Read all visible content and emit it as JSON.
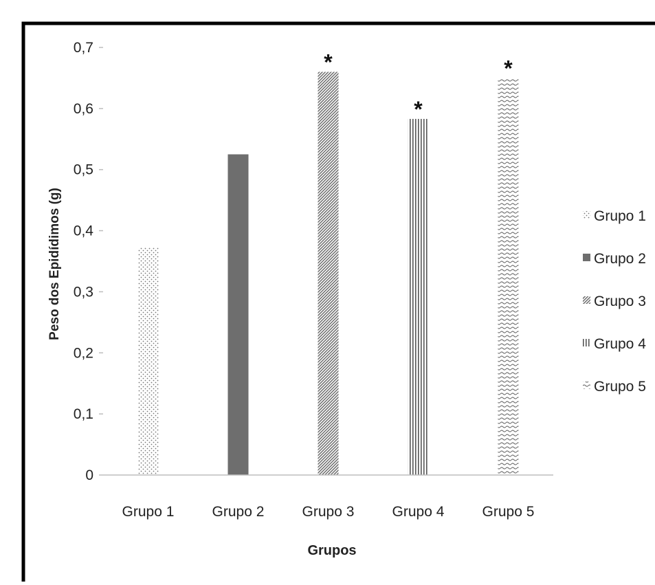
{
  "chart_data": {
    "type": "bar",
    "title": "",
    "xlabel": "Grupos",
    "ylabel": "Peso dos Epidídimos (g)",
    "ylim": [
      0,
      0.7
    ],
    "yticks": [
      "0",
      "0,1",
      "0,2",
      "0,3",
      "0,4",
      "0,5",
      "0,6",
      "0,7"
    ],
    "categories": [
      "Grupo 1",
      "Grupo 2",
      "Grupo 3",
      "Grupo 4",
      "Grupo 5"
    ],
    "values": [
      0.372,
      0.525,
      0.66,
      0.583,
      0.65
    ],
    "annotations": [
      "",
      "",
      "*",
      "*",
      "*"
    ],
    "patterns": [
      "dots",
      "solid",
      "diagonal",
      "vertical",
      "wave"
    ],
    "legend": {
      "placement": "right",
      "entries": [
        "Grupo 1",
        "Grupo 2",
        "Grupo 3",
        "Grupo 4",
        "Grupo 5"
      ]
    },
    "grid": false,
    "colors": {
      "bar": "#6e6e6e",
      "axis": "#bdbdbd",
      "frame": "#000000",
      "text": "#222222"
    }
  }
}
